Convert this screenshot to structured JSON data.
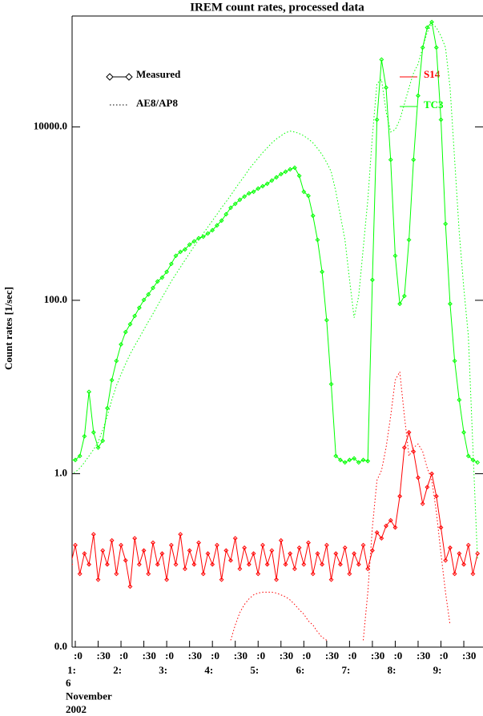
{
  "chart_data": {
    "type": "line",
    "title": "IREM count rates, processed data",
    "ylabel": "Count rates [1/sec]",
    "ylog": true,
    "ylim": [
      0.01,
      190000
    ],
    "yticks": [
      {
        "value": 0.01,
        "label": "0.0"
      },
      {
        "value": 1,
        "label": "1.0"
      },
      {
        "value": 100,
        "label": "100.0"
      },
      {
        "value": 10000,
        "label": "10000.0"
      }
    ],
    "xlim": [
      0.93,
      9.92
    ],
    "xticks": [
      {
        "value": 1,
        "label": ":0"
      },
      {
        "value": 1.5,
        "label": ":30"
      },
      {
        "value": 2,
        "label": ":0"
      },
      {
        "value": 2.5,
        "label": ":30"
      },
      {
        "value": 3,
        "label": ":0"
      },
      {
        "value": 3.5,
        "label": ":30"
      },
      {
        "value": 4,
        "label": ":0"
      },
      {
        "value": 4.5,
        "label": ":30"
      },
      {
        "value": 5,
        "label": ":0"
      },
      {
        "value": 5.5,
        "label": ":30"
      },
      {
        "value": 6,
        "label": ":0"
      },
      {
        "value": 6.5,
        "label": ":30"
      },
      {
        "value": 7,
        "label": ":0"
      },
      {
        "value": 7.5,
        "label": ":30"
      },
      {
        "value": 8,
        "label": ":0"
      },
      {
        "value": 8.5,
        "label": ":30"
      },
      {
        "value": 9,
        "label": ":0"
      },
      {
        "value": 9.5,
        "label": ":30"
      }
    ],
    "x_hour_labels": [
      "1:",
      "2:",
      "3:",
      "4:",
      "5:",
      "6:",
      "7:",
      "8:",
      "9:"
    ],
    "date_label": [
      "6",
      "November",
      "2002"
    ],
    "legend_styles": [
      "Measured",
      "AE8/AP8"
    ],
    "x": [
      0.9,
      1.0,
      1.1,
      1.2,
      1.3,
      1.4,
      1.5,
      1.6,
      1.7,
      1.8,
      1.9,
      2.0,
      2.1,
      2.2,
      2.3,
      2.4,
      2.5,
      2.6,
      2.7,
      2.8,
      2.9,
      3.0,
      3.1,
      3.2,
      3.3,
      3.4,
      3.5,
      3.6,
      3.7,
      3.8,
      3.9,
      4.0,
      4.1,
      4.2,
      4.3,
      4.4,
      4.5,
      4.6,
      4.7,
      4.8,
      4.9,
      5.0,
      5.1,
      5.2,
      5.3,
      5.4,
      5.5,
      5.6,
      5.7,
      5.8,
      5.9,
      6.0,
      6.1,
      6.2,
      6.3,
      6.4,
      6.5,
      6.6,
      6.7,
      6.8,
      6.9,
      7.0,
      7.1,
      7.2,
      7.3,
      7.4,
      7.5,
      7.6,
      7.7,
      7.8,
      7.9,
      8.0,
      8.1,
      8.2,
      8.3,
      8.4,
      8.5,
      8.6,
      8.7,
      8.8,
      8.9,
      9.0,
      9.1,
      9.2,
      9.3,
      9.4,
      9.5,
      9.6,
      9.7,
      9.8
    ],
    "series": [
      {
        "name": "TC3",
        "color": "#00ff00",
        "values": [
          1.44,
          1.44,
          1.6,
          2.7,
          8.8,
          3.0,
          2.0,
          2.4,
          5.7,
          12,
          20,
          31,
          43,
          53,
          66,
          82,
          101,
          117,
          139,
          165,
          183,
          213,
          263,
          326,
          362,
          386,
          439,
          478,
          520,
          542,
          590,
          643,
          731,
          830,
          984,
          1167,
          1297,
          1443,
          1572,
          1711,
          1786,
          1944,
          2070,
          2209,
          2406,
          2620,
          2852,
          3040,
          3240,
          3380,
          2730,
          1786,
          1605,
          944,
          498,
          213,
          59,
          10.8,
          1.6,
          1.44,
          1.35,
          1.44,
          1.5,
          1.35,
          1.44,
          1.4,
          172,
          12100,
          59700,
          28400,
          4180,
          326,
          91,
          112,
          498,
          4180,
          22900,
          82200,
          140000,
          162000,
          82200,
          12100,
          762,
          91,
          20,
          7.1,
          3.0,
          1.6,
          1.44,
          1.35
        ]
      },
      {
        "name": "S14",
        "color": "#ff0000",
        "values": [
          0.09,
          0.15,
          0.07,
          0.12,
          0.09,
          0.2,
          0.06,
          0.13,
          0.09,
          0.17,
          0.07,
          0.15,
          0.1,
          0.05,
          0.18,
          0.09,
          0.13,
          0.07,
          0.16,
          0.09,
          0.12,
          0.06,
          0.15,
          0.09,
          0.2,
          0.08,
          0.13,
          0.09,
          0.16,
          0.07,
          0.12,
          0.09,
          0.15,
          0.06,
          0.13,
          0.1,
          0.18,
          0.08,
          0.14,
          0.09,
          0.12,
          0.07,
          0.15,
          0.09,
          0.13,
          0.06,
          0.17,
          0.09,
          0.12,
          0.08,
          0.14,
          0.09,
          0.16,
          0.07,
          0.12,
          0.09,
          0.15,
          0.06,
          0.12,
          0.09,
          0.14,
          0.07,
          0.12,
          0.09,
          0.15,
          0.08,
          0.13,
          0.21,
          0.18,
          0.25,
          0.29,
          0.24,
          0.55,
          2.0,
          3.0,
          1.8,
          0.9,
          0.45,
          0.7,
          1.0,
          0.55,
          0.24,
          0.1,
          0.14,
          0.07,
          0.12,
          0.09,
          0.15,
          0.07,
          0.12
        ]
      }
    ],
    "model_series": [
      {
        "color": "#00ff00",
        "values": [
          1.0,
          1.04,
          1.16,
          1.35,
          1.6,
          1.9,
          2.3,
          3.2,
          4.6,
          7.1,
          10.4,
          14,
          18.5,
          24,
          30,
          37,
          46,
          57,
          70,
          87,
          108,
          133,
          165,
          200,
          240,
          290,
          350,
          420,
          500,
          590,
          700,
          830,
          980,
          1170,
          1370,
          1620,
          1940,
          2300,
          2700,
          3240,
          3770,
          4360,
          5060,
          5750,
          6540,
          7260,
          7890,
          8560,
          8920,
          8740,
          8390,
          7890,
          7260,
          6540,
          5650,
          4790,
          3890,
          3040,
          1786,
          944,
          498,
          172,
          63,
          112,
          400,
          1443,
          7890,
          31600,
          35200,
          15000,
          8740,
          9300,
          12100,
          18400,
          28400,
          41800,
          53200,
          82200,
          124000,
          155000,
          140000,
          112000,
          82200,
          28400,
          4180,
          610,
          139,
          39,
          2.0,
          0.1
        ]
      },
      {
        "color": "#ff0000",
        "values": [
          null,
          null,
          null,
          null,
          null,
          null,
          null,
          null,
          null,
          null,
          null,
          null,
          null,
          null,
          null,
          null,
          null,
          null,
          null,
          null,
          null,
          null,
          null,
          null,
          null,
          null,
          null,
          null,
          null,
          null,
          null,
          null,
          null,
          null,
          null,
          0.012,
          0.018,
          0.025,
          0.031,
          0.036,
          0.04,
          0.042,
          0.043,
          0.043,
          0.043,
          0.042,
          0.04,
          0.038,
          0.035,
          0.031,
          0.027,
          0.024,
          0.02,
          0.018,
          0.015,
          0.013,
          0.012,
          null,
          null,
          null,
          null,
          null,
          null,
          null,
          0.012,
          0.043,
          0.24,
          0.84,
          1.09,
          2.0,
          4.6,
          12,
          15,
          4.6,
          1.6,
          2.0,
          2.2,
          1.8,
          1.16,
          0.84,
          0.36,
          0.12,
          0.043,
          0.018,
          null,
          null,
          null,
          null,
          null,
          null
        ]
      }
    ]
  }
}
